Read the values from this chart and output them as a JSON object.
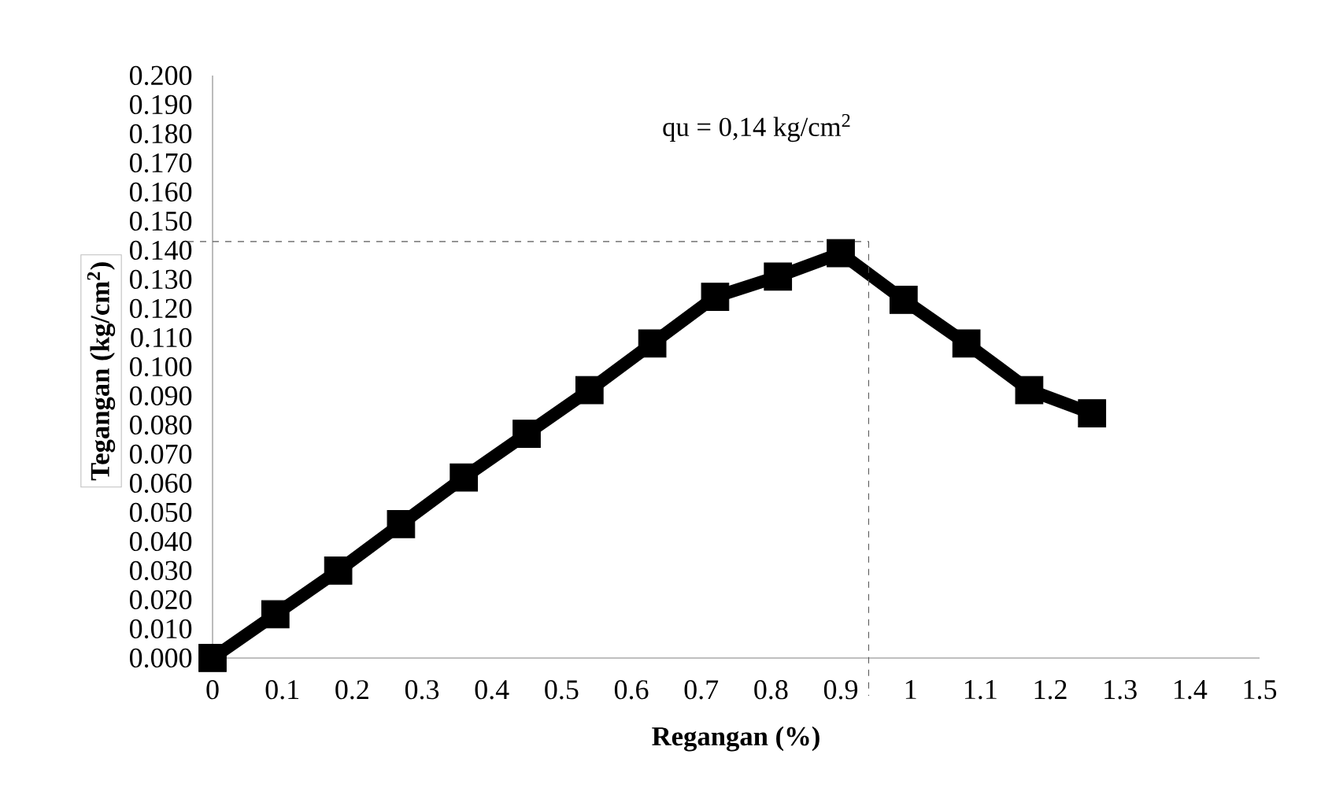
{
  "chart_data": {
    "type": "line",
    "xlabel": "Regangan (%)",
    "ylabel": "Tegangan (kg/cm$^{2}$)",
    "annotations": [
      "qu = 0,14  kg/cm$^{2}$"
    ],
    "x": [
      0,
      0.09,
      0.18,
      0.27,
      0.36,
      0.45,
      0.54,
      0.63,
      0.72,
      0.81,
      0.9,
      0.99,
      1.08,
      1.17,
      1.26
    ],
    "series": [
      {
        "color": "#000000",
        "values": [
          0,
          0.015,
          0.03,
          0.046,
          0.062,
          0.077,
          0.092,
          0.108,
          0.124,
          0.131,
          0.139,
          0.123,
          0.108,
          0.092,
          0.084
        ]
      }
    ],
    "marker": "square",
    "line_style": "solid",
    "grid": false,
    "xlim": [
      0,
      1.5
    ],
    "xticks": [
      0,
      0.1,
      0.2,
      0.3,
      0.4,
      0.5,
      0.6,
      0.7,
      0.8,
      0.9,
      1,
      1.1,
      1.2,
      1.3,
      1.4,
      1.5
    ],
    "ylim": [
      0,
      0.2
    ],
    "yticks": [
      {
        "value": 0,
        "label": "0.000"
      },
      {
        "value": 0.01,
        "label": "0.010"
      },
      {
        "value": 0.02,
        "label": "0.020"
      },
      {
        "value": 0.03,
        "label": "0.030"
      },
      {
        "value": 0.04,
        "label": "0.040"
      },
      {
        "value": 0.05,
        "label": "0.050"
      },
      {
        "value": 0.06,
        "label": "0.060"
      },
      {
        "value": 0.07,
        "label": "0.070"
      },
      {
        "value": 0.08,
        "label": "0.080"
      },
      {
        "value": 0.09,
        "label": "0.090"
      },
      {
        "value": 0.1,
        "label": "0.100"
      },
      {
        "value": 0.11,
        "label": "0.110"
      },
      {
        "value": 0.12,
        "label": "0.120"
      },
      {
        "value": 0.13,
        "label": "0.130"
      },
      {
        "value": 0.14,
        "label": "0.140"
      },
      {
        "value": 0.15,
        "label": "0.150"
      },
      {
        "value": 0.16,
        "label": "0.160"
      },
      {
        "value": 0.17,
        "label": "0.170"
      },
      {
        "value": 0.18,
        "label": "0.180"
      },
      {
        "value": 0.19,
        "label": "0.190"
      },
      {
        "value": 0.2,
        "label": "0.200"
      }
    ],
    "ref_lines": [
      {
        "axis": "y",
        "value": 0.143,
        "line_style": "dashed",
        "color": "#595959"
      },
      {
        "axis": "x",
        "value": 0.94,
        "line_style": "dashed",
        "color": "#595959"
      }
    ]
  }
}
